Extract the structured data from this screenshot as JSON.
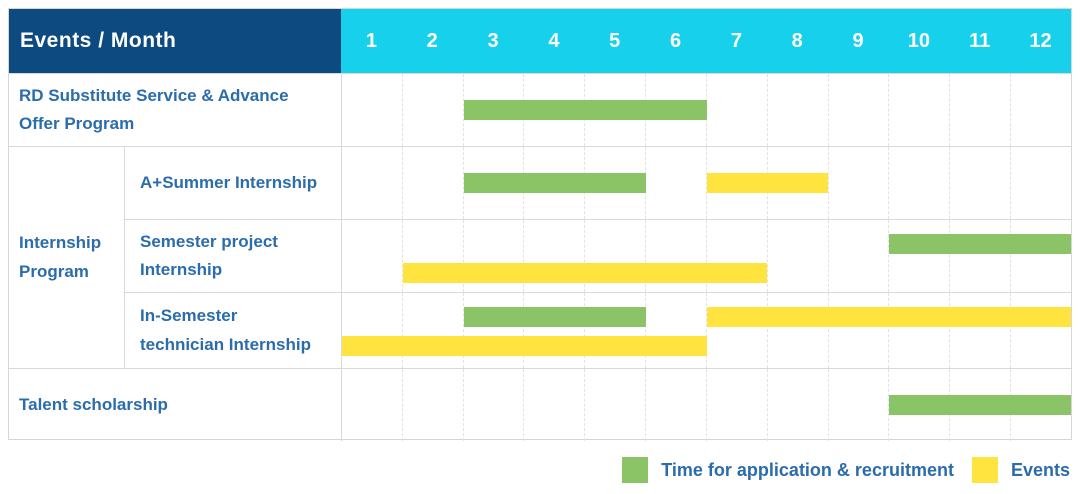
{
  "header": {
    "label": "Events / Month"
  },
  "colors": {
    "header_navy": "#0d4a80",
    "months_cyan": "#17d0ec",
    "bar_green": "#8bc367",
    "bar_yellow": "#ffe33f",
    "label_blue": "#2b6cac"
  },
  "chart_data": {
    "type": "gantt",
    "title": "Events / Month",
    "months": [
      "1",
      "2",
      "3",
      "4",
      "5",
      "6",
      "7",
      "8",
      "9",
      "10",
      "11",
      "12"
    ],
    "x_range": [
      1,
      12
    ],
    "grid": "vertical dashed per month",
    "rows": [
      {
        "label": "RD Substitute Service & Advance Offer Program",
        "group": null,
        "bars": [
          {
            "series": "Time for application & recruitment",
            "color": "green",
            "start_month": 3,
            "end_month": 6,
            "line": "single"
          }
        ]
      },
      {
        "label": "A+Summer Internship",
        "group": "Internship Program",
        "bars": [
          {
            "series": "Time for application & recruitment",
            "color": "green",
            "start_month": 3,
            "end_month": 5,
            "line": "single"
          },
          {
            "series": "Events",
            "color": "yellow",
            "start_month": 7,
            "end_month": 8,
            "line": "single"
          }
        ]
      },
      {
        "label": "Semester project Internship",
        "group": "Internship Program",
        "bars": [
          {
            "series": "Time for application & recruitment",
            "color": "green",
            "start_month": 10,
            "end_month": 12,
            "line": "top"
          },
          {
            "series": "Events",
            "color": "yellow",
            "start_month": 2,
            "end_month": 7,
            "line": "bottom"
          }
        ]
      },
      {
        "label": "In-Semester technician Internship",
        "group": "Internship Program",
        "bars": [
          {
            "series": "Time for application & recruitment",
            "color": "green",
            "start_month": 3,
            "end_month": 5,
            "line": "top"
          },
          {
            "series": "Events",
            "color": "yellow",
            "start_month": 7,
            "end_month": 12,
            "line": "top"
          },
          {
            "series": "Events",
            "color": "yellow",
            "start_month": 1,
            "end_month": 6,
            "line": "bottom"
          }
        ]
      },
      {
        "label": "Talent scholarship",
        "group": null,
        "bars": [
          {
            "series": "Time for application & recruitment",
            "color": "green",
            "start_month": 10,
            "end_month": 12,
            "line": "single"
          }
        ]
      }
    ],
    "legend": {
      "position": "bottom-right",
      "items": [
        {
          "color": "green",
          "label": "Time for application & recruitment"
        },
        {
          "color": "yellow",
          "label": "Events"
        }
      ]
    }
  }
}
